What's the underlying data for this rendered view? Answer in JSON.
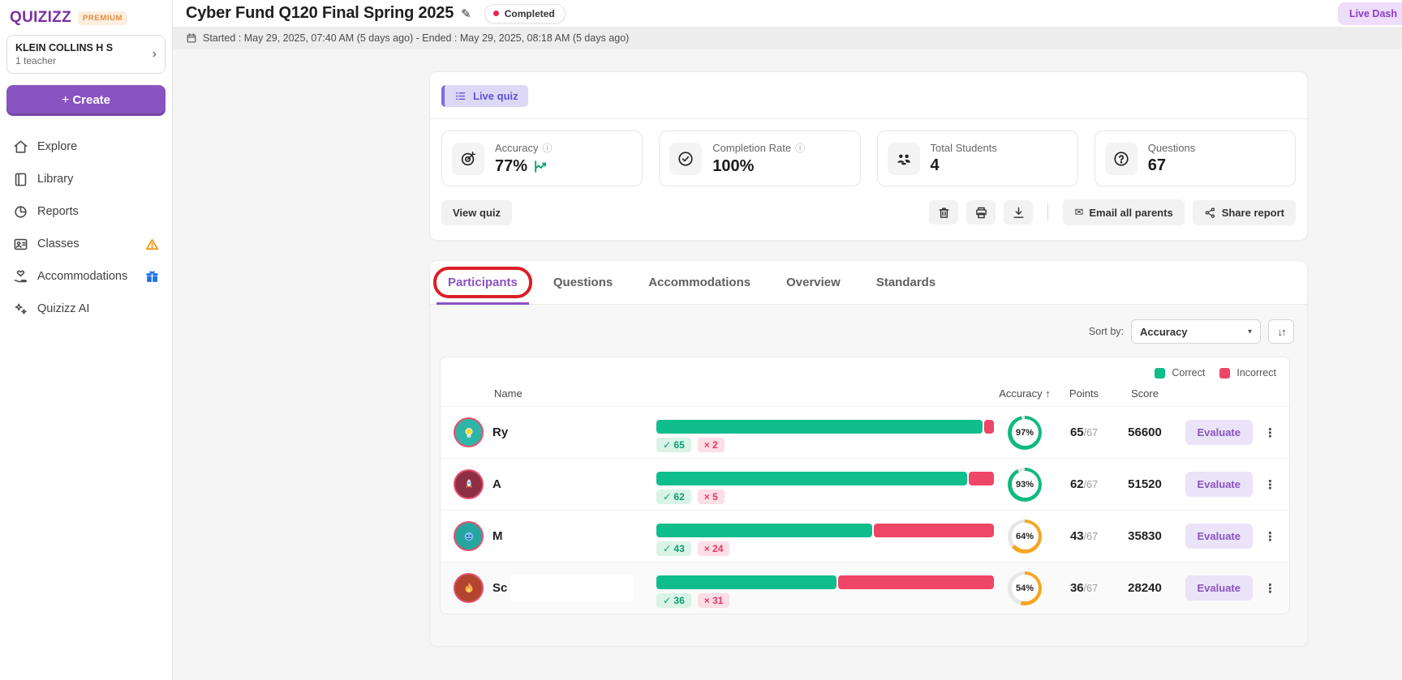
{
  "brand": {
    "logo": "QUIZIZZ",
    "premium": "PREMIUM"
  },
  "school": {
    "name": "KLEIN COLLINS H S",
    "subtitle": "1 teacher"
  },
  "sidebar": {
    "create_label": "Create",
    "items": [
      {
        "label": "Explore"
      },
      {
        "label": "Library"
      },
      {
        "label": "Reports"
      },
      {
        "label": "Classes",
        "badge": "warning"
      },
      {
        "label": "Accommodations",
        "badge": "gift"
      },
      {
        "label": "Quizizz AI"
      }
    ]
  },
  "header": {
    "title": "Cyber Fund Q120 Final Spring 2025",
    "status": "Completed",
    "date_range": "Started : May 29, 2025, 07:40 AM (5 days ago) - Ended : May 29, 2025, 08:18 AM (5 days ago)",
    "live_dash_label": "Live Dash"
  },
  "summary": {
    "quiz_type": "Live quiz",
    "stats": [
      {
        "icon": "target-icon",
        "label": "Accuracy",
        "value": "77%",
        "has_info": true,
        "has_trend": true
      },
      {
        "icon": "check-circle-icon",
        "label": "Completion Rate",
        "value": "100%",
        "has_info": true
      },
      {
        "icon": "students-icon",
        "label": "Total Students",
        "value": "4"
      },
      {
        "icon": "question-icon",
        "label": "Questions",
        "value": "67"
      }
    ],
    "view_quiz_label": "View quiz",
    "email_parents_label": "Email all parents",
    "share_report_label": "Share report"
  },
  "tabs": [
    {
      "label": "Participants",
      "active": true
    },
    {
      "label": "Questions",
      "active": false
    },
    {
      "label": "Accommodations",
      "active": false
    },
    {
      "label": "Overview",
      "active": false
    },
    {
      "label": "Standards",
      "active": false
    }
  ],
  "sort": {
    "label": "Sort by:",
    "value": "Accuracy"
  },
  "legend": {
    "correct": "Correct",
    "incorrect": "Incorrect"
  },
  "table": {
    "headers": {
      "name": "Name",
      "accuracy": "Accuracy",
      "points": "Points",
      "score": "Score"
    },
    "total_questions": 67,
    "evaluate_label": "Evaluate",
    "rows": [
      {
        "name": "Ry",
        "avatar": "lightbulb-avatar",
        "avatar_bg": "#2fb5a8",
        "correct": 65,
        "incorrect": 2,
        "accuracy": 97,
        "accuracy_label": "97%",
        "ring_color": "#10b981",
        "points": "65",
        "points_suffix": "/67",
        "score": "56600"
      },
      {
        "name": "A",
        "avatar": "rocket-avatar",
        "avatar_bg": "#8d2f45",
        "correct": 62,
        "incorrect": 5,
        "accuracy": 93,
        "accuracy_label": "93%",
        "ring_color": "#10b981",
        "points": "62",
        "points_suffix": "/67",
        "score": "51520"
      },
      {
        "name": "M",
        "avatar": "monster-avatar",
        "avatar_bg": "#27a6a0",
        "correct": 43,
        "incorrect": 24,
        "accuracy": 64,
        "accuracy_label": "64%",
        "ring_color": "#f5a623",
        "points": "43",
        "points_suffix": "/67",
        "score": "35830"
      },
      {
        "name": "Sc",
        "avatar": "flame-avatar",
        "avatar_bg": "#b3452e",
        "correct": 36,
        "incorrect": 31,
        "accuracy": 54,
        "accuracy_label": "54%",
        "ring_color": "#f5a623",
        "points": "36",
        "points_suffix": "/67",
        "score": "28240",
        "redacted": true
      }
    ]
  },
  "colors": {
    "accent": "#8854c0",
    "correct": "#10bd8d",
    "incorrect": "#ef4566",
    "ring_green": "#10b981",
    "ring_amber": "#f5a623",
    "warning": "#f08c00",
    "annotation": "#da1f26"
  }
}
